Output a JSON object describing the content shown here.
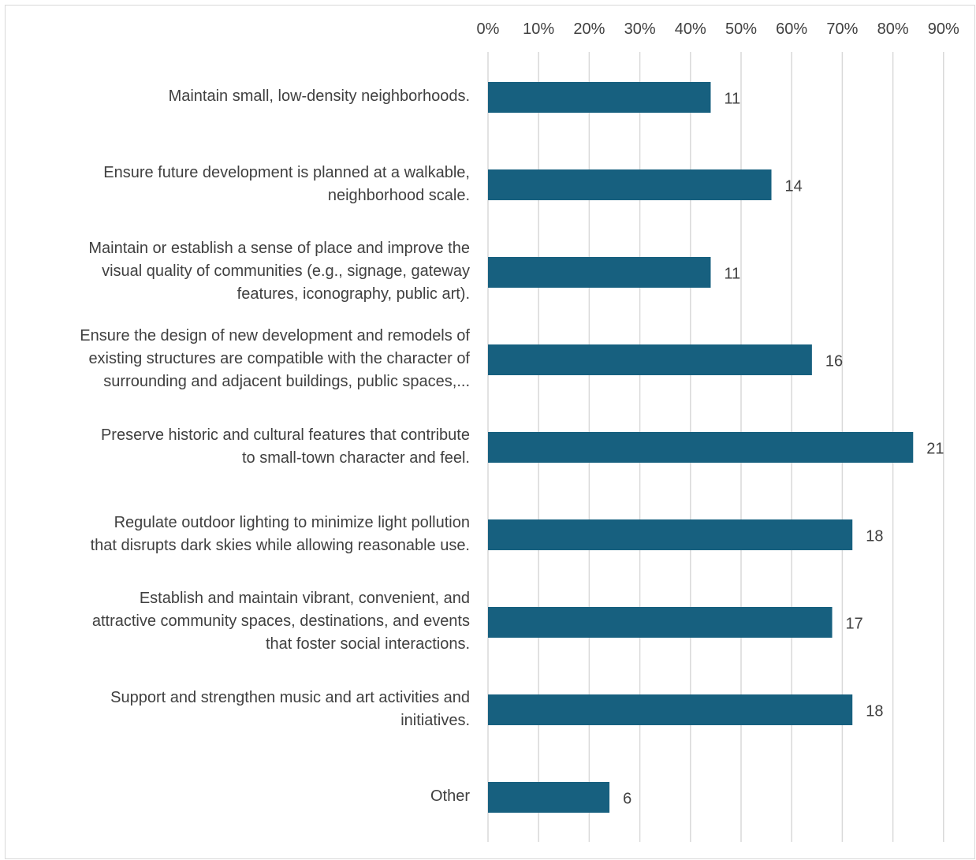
{
  "chart_data": {
    "type": "bar",
    "orientation": "horizontal",
    "categories": [
      "Maintain small, low-density neighborhoods.",
      "Ensure future development is planned at a walkable,\nneighborhood scale.",
      "Maintain or establish a sense of place and improve the\nvisual quality of communities (e.g., signage, gateway\nfeatures, iconography, public art).",
      "Ensure the design of new development and remodels of\nexisting structures are compatible with the character of\nsurrounding and adjacent buildings, public spaces,...",
      "Preserve historic and cultural features that contribute\nto small-town character and feel.",
      "Regulate outdoor lighting to minimize light pollution\nthat disrupts dark skies while allowing reasonable use.",
      "Establish and maintain vibrant, convenient, and\nattractive community spaces, destinations, and events\nthat foster social interactions.",
      "Support and strengthen music and art activities and\ninitiatives.",
      "Other"
    ],
    "values": [
      11,
      14,
      11,
      16,
      21,
      18,
      17,
      18,
      6
    ],
    "percent_values": [
      44,
      56,
      44,
      64,
      84,
      72,
      68,
      72,
      24
    ],
    "data_labels": [
      "11",
      "14",
      "11",
      "16",
      "21",
      "18",
      "17",
      "18",
      "6"
    ],
    "xaxis_ticks": [
      "0%",
      "10%",
      "20%",
      "30%",
      "40%",
      "50%",
      "60%",
      "70%",
      "80%",
      "90%"
    ],
    "xlim": [
      0,
      90
    ],
    "x_axis_position": "top",
    "grid": true,
    "legend": "none",
    "title": "",
    "xlabel": "",
    "ylabel": "",
    "bar_color": "#17607f",
    "grid_color": "#d9d9d9",
    "text_color": "#404040"
  }
}
